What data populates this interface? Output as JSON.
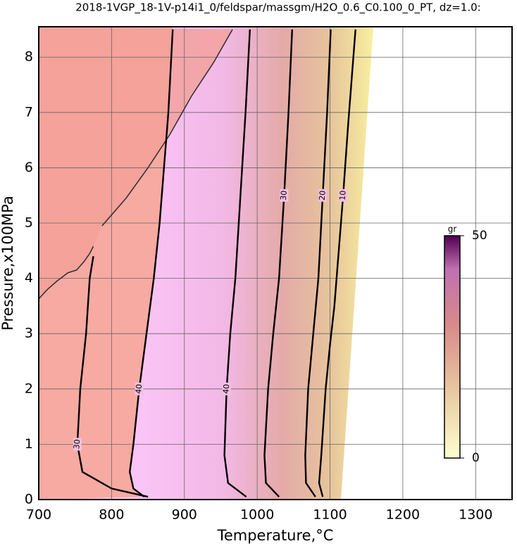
{
  "chart_data": {
    "type": "contour",
    "title": "2018-1VGP_18-1V-p14i1_0/feldspar/massgm/H2O_0.6_C0.100_0_PT, dz=1.0:",
    "x_label": "Temperature,°C",
    "y_label": "Pressure,x100MPa",
    "xlim": [
      700,
      1350
    ],
    "xticks": [
      700,
      800,
      900,
      1000,
      1100,
      1200,
      1300
    ],
    "ylim": [
      0,
      8.55
    ],
    "yticks": [
      0,
      1,
      2,
      3,
      4,
      5,
      6,
      7,
      8
    ],
    "grid": true,
    "contours": [
      {
        "level": 30,
        "x": [
          850,
          800,
          760,
          753,
          757,
          765,
          770,
          775
        ],
        "y": [
          0.05,
          0.2,
          0.5,
          1,
          2,
          3,
          4,
          4.4
        ],
        "label_at": 3
      },
      {
        "level": 40,
        "x": [
          845,
          830,
          825,
          830,
          838,
          848,
          858,
          866,
          872,
          878,
          884
        ],
        "y": [
          0.05,
          0.2,
          0.5,
          1,
          2,
          3,
          4,
          5,
          6,
          7,
          8.5
        ],
        "label_at": 4
      },
      {
        "level": 40,
        "x": [
          985,
          960,
          955,
          958,
          963,
          970,
          977,
          984,
          990
        ],
        "y": [
          0.05,
          0.3,
          0.8,
          2,
          3,
          4,
          5.5,
          7,
          8.5
        ],
        "label_at": 3
      },
      {
        "level": 30,
        "x": [
          1030,
          1012,
          1010,
          1015,
          1022,
          1030,
          1037,
          1043,
          1048
        ],
        "y": [
          0.05,
          0.3,
          0.8,
          2,
          3,
          4,
          5.5,
          7,
          8.5
        ],
        "label_at": 6
      },
      {
        "level": 20,
        "x": [
          1080,
          1067,
          1066,
          1070,
          1077,
          1084,
          1090,
          1096,
          1101
        ],
        "y": [
          0.05,
          0.3,
          0.8,
          2,
          3,
          4,
          5.5,
          7,
          8.5
        ],
        "label_at": 6
      },
      {
        "level": 10,
        "x": [
          1090,
          1085,
          1088,
          1094,
          1100,
          1106,
          1112,
          1118,
          1125,
          1135
        ],
        "y": [
          0.05,
          0.3,
          0.8,
          2,
          2.8,
          3.5,
          4.5,
          5.5,
          6.8,
          8.5
        ],
        "label_at": 7
      }
    ],
    "boundaries": [
      {
        "x": [
          700,
          712,
          725,
          740,
          752,
          762,
          770,
          775
        ],
        "y": [
          3.63,
          3.8,
          3.95,
          4.1,
          4.15,
          4.3,
          4.45,
          4.58
        ]
      },
      {
        "x": [
          787,
          820,
          850,
          880,
          910,
          940,
          966
        ],
        "y": [
          4.95,
          5.45,
          6.0,
          6.6,
          7.3,
          7.9,
          8.5
        ]
      }
    ],
    "colorbar": {
      "label": "gr",
      "lim": [
        0,
        50
      ],
      "ticks": [
        0,
        50
      ]
    }
  }
}
